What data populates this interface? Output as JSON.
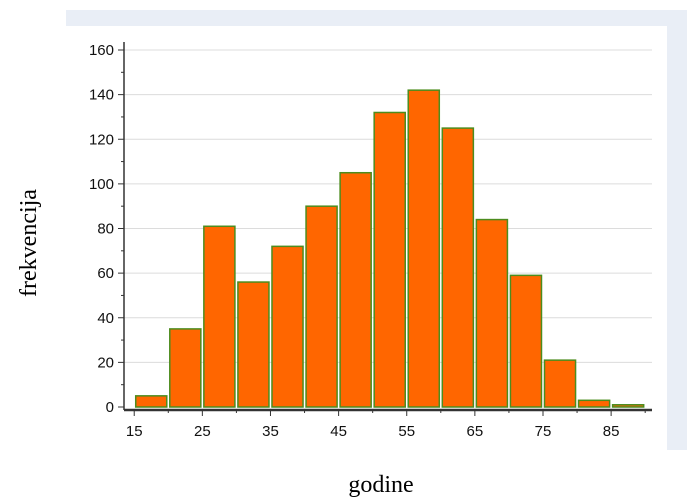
{
  "chart_data": {
    "type": "bar",
    "xlabel": "godine",
    "ylabel": "frekvencija",
    "ylim": [
      0,
      160
    ],
    "yticks": [
      0,
      20,
      40,
      60,
      80,
      100,
      120,
      140,
      160
    ],
    "xlim": [
      13.5,
      91
    ],
    "xticks": [
      15,
      25,
      35,
      45,
      55,
      65,
      75,
      85
    ],
    "bin_width": 5,
    "bars": [
      {
        "x": 17.5,
        "value": 5
      },
      {
        "x": 22.5,
        "value": 35
      },
      {
        "x": 27.5,
        "value": 81
      },
      {
        "x": 32.5,
        "value": 56
      },
      {
        "x": 37.5,
        "value": 72
      },
      {
        "x": 42.5,
        "value": 90
      },
      {
        "x": 47.5,
        "value": 105
      },
      {
        "x": 52.5,
        "value": 132
      },
      {
        "x": 57.5,
        "value": 142
      },
      {
        "x": 62.5,
        "value": 125
      },
      {
        "x": 67.5,
        "value": 84
      },
      {
        "x": 72.5,
        "value": 59
      },
      {
        "x": 77.5,
        "value": 21
      },
      {
        "x": 82.5,
        "value": 3
      },
      {
        "x": 87.5,
        "value": 1
      }
    ],
    "bar_fill": "#ff6600",
    "bar_stroke": "#4c8c1e",
    "grid": true,
    "legend": "none"
  }
}
